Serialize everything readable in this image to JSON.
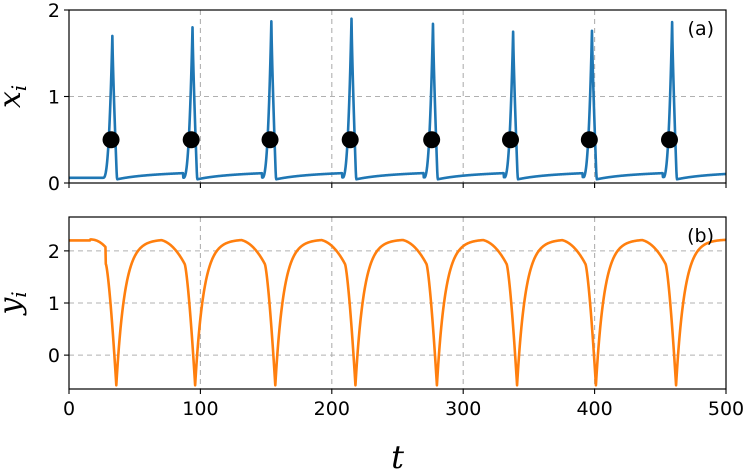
{
  "chart_data": [
    {
      "type": "line",
      "panel_label": "(a)",
      "ylabel": "x",
      "ylabel_sub": "i",
      "xlim": [
        0,
        500
      ],
      "ylim": [
        0,
        2
      ],
      "x_ticks": [
        0,
        100,
        200,
        300,
        400,
        500
      ],
      "y_ticks": [
        0,
        1,
        2
      ],
      "grid": true,
      "series": [
        {
          "color": "#1f77b4",
          "baseline_start": 0.06,
          "baseline_end": 0.07,
          "spikes": [
            {
              "t": 33,
              "peak": 1.7
            },
            {
              "t": 94,
              "peak": 1.8
            },
            {
              "t": 154,
              "peak": 1.87
            },
            {
              "t": 215,
              "peak": 1.9
            },
            {
              "t": 277,
              "peak": 1.84
            },
            {
              "t": 338,
              "peak": 1.75
            },
            {
              "t": 398,
              "peak": 1.76
            },
            {
              "t": 459,
              "peak": 1.86
            }
          ]
        }
      ],
      "markers": {
        "color": "#000000",
        "y": 0.5,
        "x": [
          32,
          93,
          153,
          214,
          276,
          336,
          396,
          457
        ]
      }
    },
    {
      "type": "line",
      "panel_label": "(b)",
      "ylabel": "y",
      "ylabel_sub": "i",
      "xlabel": "t",
      "xlim": [
        0,
        500
      ],
      "ylim": [
        -0.65,
        2.65
      ],
      "x_ticks": [
        0,
        100,
        200,
        300,
        400,
        500
      ],
      "y_ticks": [
        0,
        1,
        2
      ],
      "grid": true,
      "series": [
        {
          "color": "#ff7f0e",
          "plateau": 2.22,
          "trough": -0.58,
          "spike_times": [
            36,
            96,
            157,
            218,
            280,
            341,
            401,
            462
          ]
        }
      ]
    }
  ]
}
